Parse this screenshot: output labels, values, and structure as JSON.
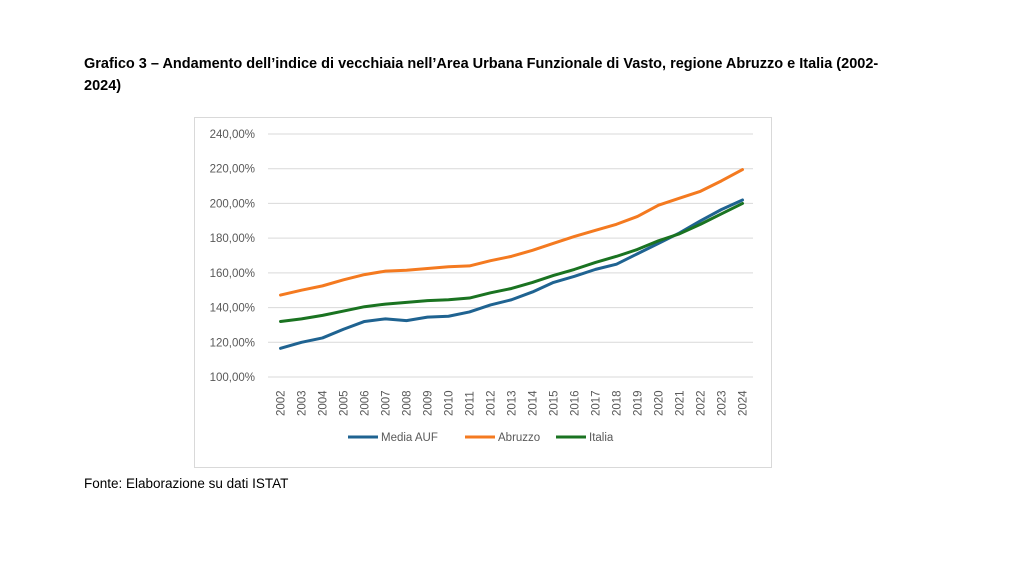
{
  "caption": "Grafico 3 – Andamento dell’indice di vecchiaia nell’Area Urbana Funzionale di Vasto, regione Abruzzo e Italia (2002-2024)",
  "source": "Fonte: Elaborazione su dati ISTAT",
  "chart_data": {
    "type": "line",
    "title": "",
    "xlabel": "",
    "ylabel": "",
    "ylim": [
      100,
      240
    ],
    "yticks": [
      "100,00%",
      "120,00%",
      "140,00%",
      "160,00%",
      "180,00%",
      "200,00%",
      "220,00%",
      "240,00%"
    ],
    "ytick_values": [
      100,
      120,
      140,
      160,
      180,
      200,
      220,
      240
    ],
    "grid": true,
    "legend": "bottom",
    "categories": [
      "2002",
      "2003",
      "2004",
      "2005",
      "2006",
      "2007",
      "2008",
      "2009",
      "2010",
      "2011",
      "2012",
      "2013",
      "2014",
      "2015",
      "2016",
      "2017",
      "2018",
      "2019",
      "2020",
      "2021",
      "2022",
      "2023",
      "2024"
    ],
    "series": [
      {
        "name": "Media AUF",
        "color": "#1f6391",
        "values": [
          116.5,
          120,
          122.5,
          127.5,
          132,
          133.5,
          132.5,
          134.5,
          135,
          137.5,
          141.5,
          144.5,
          149,
          154.5,
          158,
          162,
          165,
          171,
          177,
          183,
          190,
          196.5,
          202
        ]
      },
      {
        "name": "Abruzzo",
        "color": "#f47a20",
        "values": [
          147.2,
          150,
          152.5,
          156,
          159,
          161,
          161.5,
          162.5,
          163.5,
          164,
          167,
          169.5,
          173,
          177,
          181,
          184.5,
          188,
          192.5,
          199,
          203,
          207,
          213,
          219.5
        ]
      },
      {
        "name": "Italia",
        "color": "#1a7321",
        "values": [
          132,
          133.5,
          135.5,
          138,
          140.5,
          142,
          143,
          144,
          144.5,
          145.5,
          148.5,
          151,
          154.5,
          158.5,
          162,
          166,
          169.5,
          173.5,
          178.5,
          182.5,
          188,
          194,
          200
        ]
      }
    ]
  }
}
